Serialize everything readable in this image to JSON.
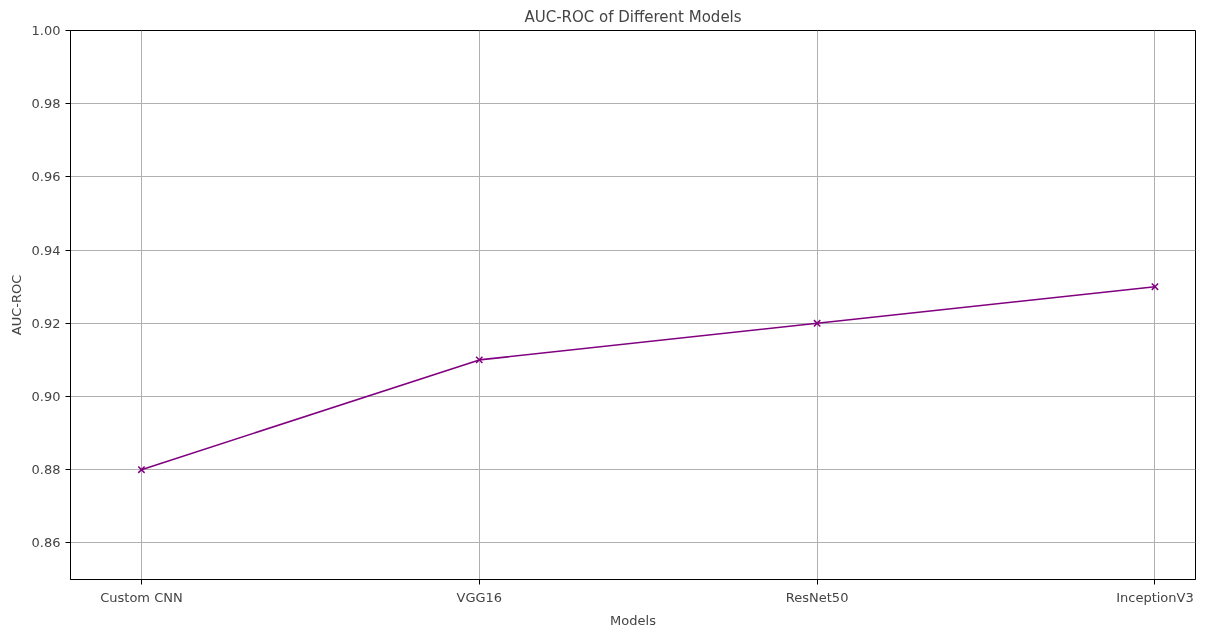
{
  "chart_data": {
    "type": "line",
    "title": "AUC-ROC of Different Models",
    "xlabel": "Models",
    "ylabel": "AUC-ROC",
    "categories": [
      "Custom CNN",
      "VGG16",
      "ResNet50",
      "InceptionV3"
    ],
    "series": [
      {
        "color": "#800080",
        "values": [
          0.88,
          0.91,
          0.92,
          0.93
        ]
      }
    ],
    "ylim": [
      0.85,
      1.0
    ],
    "yticks": [
      0.86,
      0.88,
      {
        "value": 0.9,
        "label": "0.90"
      },
      0.92,
      0.94,
      0.96,
      0.98,
      {
        "value": 1.0,
        "label": "1.00"
      }
    ],
    "grid": true,
    "marker": "cross",
    "line_style": "solid"
  }
}
